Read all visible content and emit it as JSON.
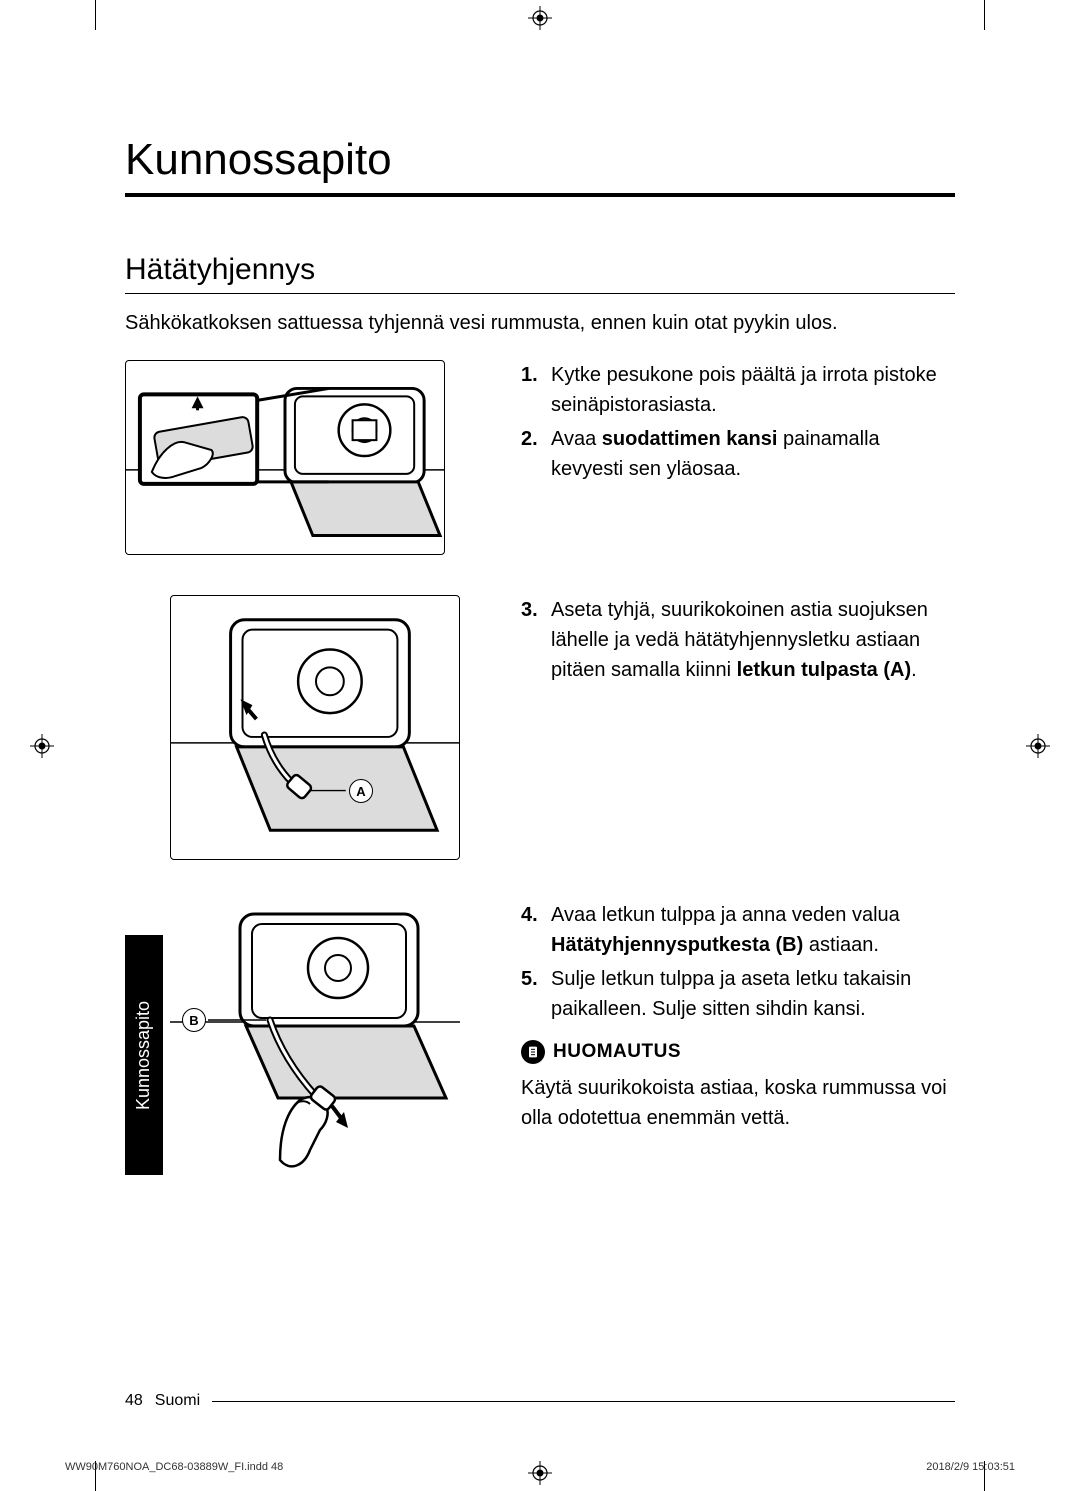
{
  "title": "Kunnossapito",
  "section_title": "Hätätyhjennys",
  "intro": "Sähkökatkoksen sattuessa tyhjennä vesi rummusta, ennen kuin otat pyykin ulos.",
  "steps_block1": {
    "start": 0,
    "items": [
      {
        "text_pre": "Kytke pesukone pois päältä ja irrota pistoke seinäpistorasiasta."
      },
      {
        "text_pre": "Avaa ",
        "bold": "suodattimen kansi",
        "text_post": " painamalla kevyesti sen yläosaa."
      }
    ]
  },
  "steps_block2": {
    "start": 2,
    "items": [
      {
        "text_pre": "Aseta tyhjä, suurikokoinen astia suojuksen lähelle ja vedä hätätyhjennysletku astiaan pitäen samalla kiinni ",
        "bold": "letkun tulpasta (A)",
        "text_post": "."
      }
    ]
  },
  "steps_block3": {
    "start": 3,
    "items": [
      {
        "text_pre": "Avaa letkun tulppa ja anna veden valua ",
        "bold": "Hätätyhjennysputkesta  (B)",
        "text_post": " astiaan."
      },
      {
        "text_pre": "Sulje letkun tulppa ja aseta letku takaisin paikalleen. Sulje sitten sihdin kansi."
      }
    ]
  },
  "callout_A": "A",
  "callout_B": "B",
  "note_label": "HUOMAUTUS",
  "note_body": "Käytä suurikokoista astiaa, koska rummussa voi olla odotettua enemmän vettä.",
  "side_tab": "Kunnossapito",
  "page_number": "48",
  "language": "Suomi",
  "print_file": "WW90M760NOA_DC68-03889W_FI.indd   48",
  "print_time": "2018/2/9   15:03:51",
  "colors": {
    "text": "#000000",
    "bg": "#ffffff",
    "tab_bg": "#000000",
    "tab_fg": "#ffffff"
  }
}
